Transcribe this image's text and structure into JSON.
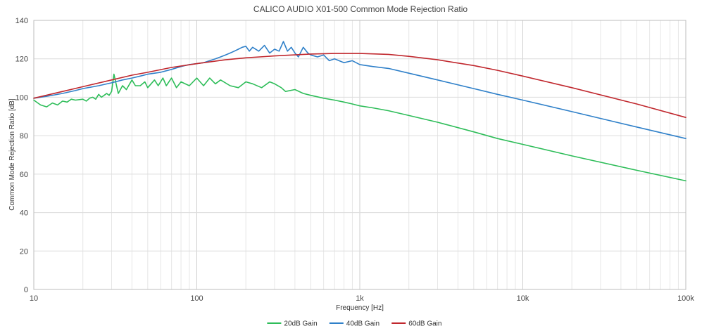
{
  "chart_data": {
    "type": "line",
    "title": "CALICO AUDIO X01-500 Common Mode Rejection Ratio",
    "xlabel": "Frequency [Hz]",
    "ylabel": "Common Mode Rejection Ratio [dB]",
    "x_scale": "log",
    "xlim": [
      10,
      100000
    ],
    "ylim": [
      0,
      140
    ],
    "x_ticks": [
      {
        "value": 10,
        "label": "10"
      },
      {
        "value": 100,
        "label": "100"
      },
      {
        "value": 1000,
        "label": "1k"
      },
      {
        "value": 10000,
        "label": "10k"
      },
      {
        "value": 100000,
        "label": "100k"
      }
    ],
    "y_ticks": [
      {
        "value": 0,
        "label": "0"
      },
      {
        "value": 20,
        "label": "20"
      },
      {
        "value": 40,
        "label": "40"
      },
      {
        "value": 60,
        "label": "60"
      },
      {
        "value": 80,
        "label": "80"
      },
      {
        "value": 100,
        "label": "100"
      },
      {
        "value": 120,
        "label": "120"
      },
      {
        "value": 140,
        "label": "140"
      }
    ],
    "grid": true,
    "legend_position": "bottom-center",
    "series": [
      {
        "name": "20dB Gain",
        "color": "#2ebd59",
        "points": [
          [
            10,
            98.5
          ],
          [
            11,
            96
          ],
          [
            12,
            95
          ],
          [
            13,
            97
          ],
          [
            14,
            96
          ],
          [
            15,
            98
          ],
          [
            16,
            97.5
          ],
          [
            17,
            99
          ],
          [
            18,
            98.5
          ],
          [
            20,
            99
          ],
          [
            21,
            98
          ],
          [
            22,
            99.5
          ],
          [
            23,
            100
          ],
          [
            24,
            99
          ],
          [
            25,
            101.5
          ],
          [
            26,
            100
          ],
          [
            27,
            101
          ],
          [
            28,
            102
          ],
          [
            29,
            101
          ],
          [
            30,
            103
          ],
          [
            31,
            112
          ],
          [
            32,
            107
          ],
          [
            33,
            102
          ],
          [
            35,
            106
          ],
          [
            37,
            104
          ],
          [
            40,
            109
          ],
          [
            42,
            106
          ],
          [
            45,
            106
          ],
          [
            48,
            108
          ],
          [
            50,
            105
          ],
          [
            55,
            109
          ],
          [
            58,
            106
          ],
          [
            62,
            110
          ],
          [
            65,
            106
          ],
          [
            70,
            110
          ],
          [
            75,
            105
          ],
          [
            80,
            108
          ],
          [
            90,
            106
          ],
          [
            100,
            110
          ],
          [
            110,
            106
          ],
          [
            120,
            110
          ],
          [
            130,
            107
          ],
          [
            140,
            109
          ],
          [
            160,
            106
          ],
          [
            180,
            105
          ],
          [
            200,
            108
          ],
          [
            220,
            107
          ],
          [
            250,
            105
          ],
          [
            280,
            108
          ],
          [
            300,
            107
          ],
          [
            330,
            105
          ],
          [
            350,
            103
          ],
          [
            400,
            104
          ],
          [
            450,
            102
          ],
          [
            500,
            101
          ],
          [
            600,
            99.5
          ],
          [
            700,
            98.5
          ],
          [
            800,
            97.5
          ],
          [
            900,
            96.5
          ],
          [
            1000,
            95.5
          ],
          [
            1200,
            94.5
          ],
          [
            1500,
            93
          ],
          [
            2000,
            90.5
          ],
          [
            3000,
            87
          ],
          [
            5000,
            82
          ],
          [
            7000,
            78.5
          ],
          [
            10000,
            75.5
          ],
          [
            20000,
            69.5
          ],
          [
            50000,
            62
          ],
          [
            100000,
            56.5
          ]
        ]
      },
      {
        "name": "40dB Gain",
        "color": "#2f80c9",
        "points": [
          [
            10,
            99.5
          ],
          [
            12,
            100.5
          ],
          [
            15,
            102
          ],
          [
            18,
            103.5
          ],
          [
            20,
            104.5
          ],
          [
            25,
            106
          ],
          [
            30,
            107.5
          ],
          [
            35,
            109
          ],
          [
            40,
            110
          ],
          [
            45,
            111
          ],
          [
            50,
            112
          ],
          [
            60,
            113
          ],
          [
            70,
            114.5
          ],
          [
            80,
            116
          ],
          [
            90,
            117
          ],
          [
            100,
            117.5
          ],
          [
            110,
            118
          ],
          [
            120,
            119
          ],
          [
            130,
            120
          ],
          [
            140,
            121
          ],
          [
            150,
            122
          ],
          [
            160,
            123
          ],
          [
            170,
            124
          ],
          [
            180,
            125
          ],
          [
            190,
            126
          ],
          [
            200,
            126.5
          ],
          [
            210,
            124
          ],
          [
            220,
            126
          ],
          [
            240,
            124
          ],
          [
            260,
            127
          ],
          [
            280,
            123
          ],
          [
            300,
            125
          ],
          [
            320,
            124
          ],
          [
            340,
            129
          ],
          [
            360,
            124
          ],
          [
            380,
            126
          ],
          [
            400,
            123
          ],
          [
            420,
            121
          ],
          [
            450,
            126
          ],
          [
            480,
            123
          ],
          [
            500,
            122
          ],
          [
            550,
            121
          ],
          [
            600,
            122
          ],
          [
            650,
            119
          ],
          [
            700,
            120
          ],
          [
            800,
            118
          ],
          [
            900,
            119
          ],
          [
            1000,
            117
          ],
          [
            1200,
            116
          ],
          [
            1500,
            115
          ],
          [
            2000,
            112.5
          ],
          [
            3000,
            109
          ],
          [
            5000,
            104.5
          ],
          [
            7000,
            101.5
          ],
          [
            10000,
            98.5
          ],
          [
            20000,
            92.5
          ],
          [
            50000,
            84.5
          ],
          [
            100000,
            78.5
          ]
        ]
      },
      {
        "name": "60dB Gain",
        "color": "#c0272d",
        "points": [
          [
            10,
            99.5
          ],
          [
            15,
            103
          ],
          [
            20,
            105.5
          ],
          [
            30,
            109
          ],
          [
            40,
            111.5
          ],
          [
            50,
            113
          ],
          [
            70,
            115.5
          ],
          [
            100,
            117.5
          ],
          [
            150,
            119.5
          ],
          [
            200,
            120.5
          ],
          [
            300,
            121.5
          ],
          [
            500,
            122.5
          ],
          [
            700,
            122.8
          ],
          [
            1000,
            122.8
          ],
          [
            1500,
            122.3
          ],
          [
            2000,
            121.3
          ],
          [
            3000,
            119.5
          ],
          [
            5000,
            116.5
          ],
          [
            7000,
            114
          ],
          [
            10000,
            111
          ],
          [
            20000,
            105
          ],
          [
            50000,
            96.5
          ],
          [
            100000,
            89.5
          ]
        ]
      }
    ]
  }
}
